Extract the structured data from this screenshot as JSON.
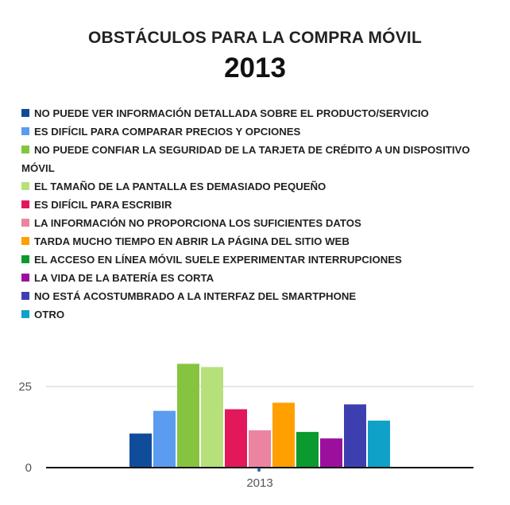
{
  "chart_data": {
    "type": "bar",
    "title": "OBSTÁCULOS PARA LA COMPRA MÓVIL",
    "subtitle": "2013",
    "categories": [
      "2013"
    ],
    "series": [
      {
        "name": "NO PUEDE VER INFORMACIÓN DETALLADA SOBRE EL PRODUCTO/SERVICIO",
        "values": [
          10.5
        ],
        "color": "#0f4c9a"
      },
      {
        "name": "ES DIFÍCIL PARA COMPARAR PRECIOS Y OPCIONES",
        "values": [
          17.5
        ],
        "color": "#5b9bf0"
      },
      {
        "name": "NO PUEDE CONFIAR LA SEGURIDAD DE LA TARJETA DE CRÉDITO A UN DISPOSITIVO MÓVIL",
        "values": [
          32
        ],
        "color": "#86c440"
      },
      {
        "name": "EL TAMAÑO DE LA PANTALLA ES DEMASIADO PEQUEÑO",
        "values": [
          31
        ],
        "color": "#b6e07a"
      },
      {
        "name": "ES DIFÍCIL PARA ESCRIBIR",
        "values": [
          18
        ],
        "color": "#e2185a"
      },
      {
        "name": "LA INFORMACIÓN NO PROPORCIONA LOS SUFICIENTES DATOS",
        "values": [
          11.5
        ],
        "color": "#ec84a0"
      },
      {
        "name": "TARDA MUCHO TIEMPO EN ABRIR LA PÁGINA DEL SITIO WEB",
        "values": [
          20
        ],
        "color": "#ff9f00"
      },
      {
        "name": "EL ACCESO EN LÍNEA MÓVIL SUELE EXPERIMENTAR INTERRUPCIONES",
        "values": [
          11
        ],
        "color": "#0a9a2e"
      },
      {
        "name": "LA VIDA DE LA BATERÍA ES CORTA",
        "values": [
          9
        ],
        "color": "#9c0f9e"
      },
      {
        "name": "NO ESTÁ ACOSTUMBRADO A LA INTERFAZ DEL SMARTPHONE",
        "values": [
          19.5
        ],
        "color": "#3d3fb0"
      },
      {
        "name": "OTRO",
        "values": [
          14.5
        ],
        "color": "#0fa1c8"
      }
    ],
    "y_ticks": [
      0,
      25
    ],
    "ylim": [
      0,
      35
    ],
    "xlabel": "",
    "ylabel": "",
    "legend_position": "top",
    "grid": true
  }
}
